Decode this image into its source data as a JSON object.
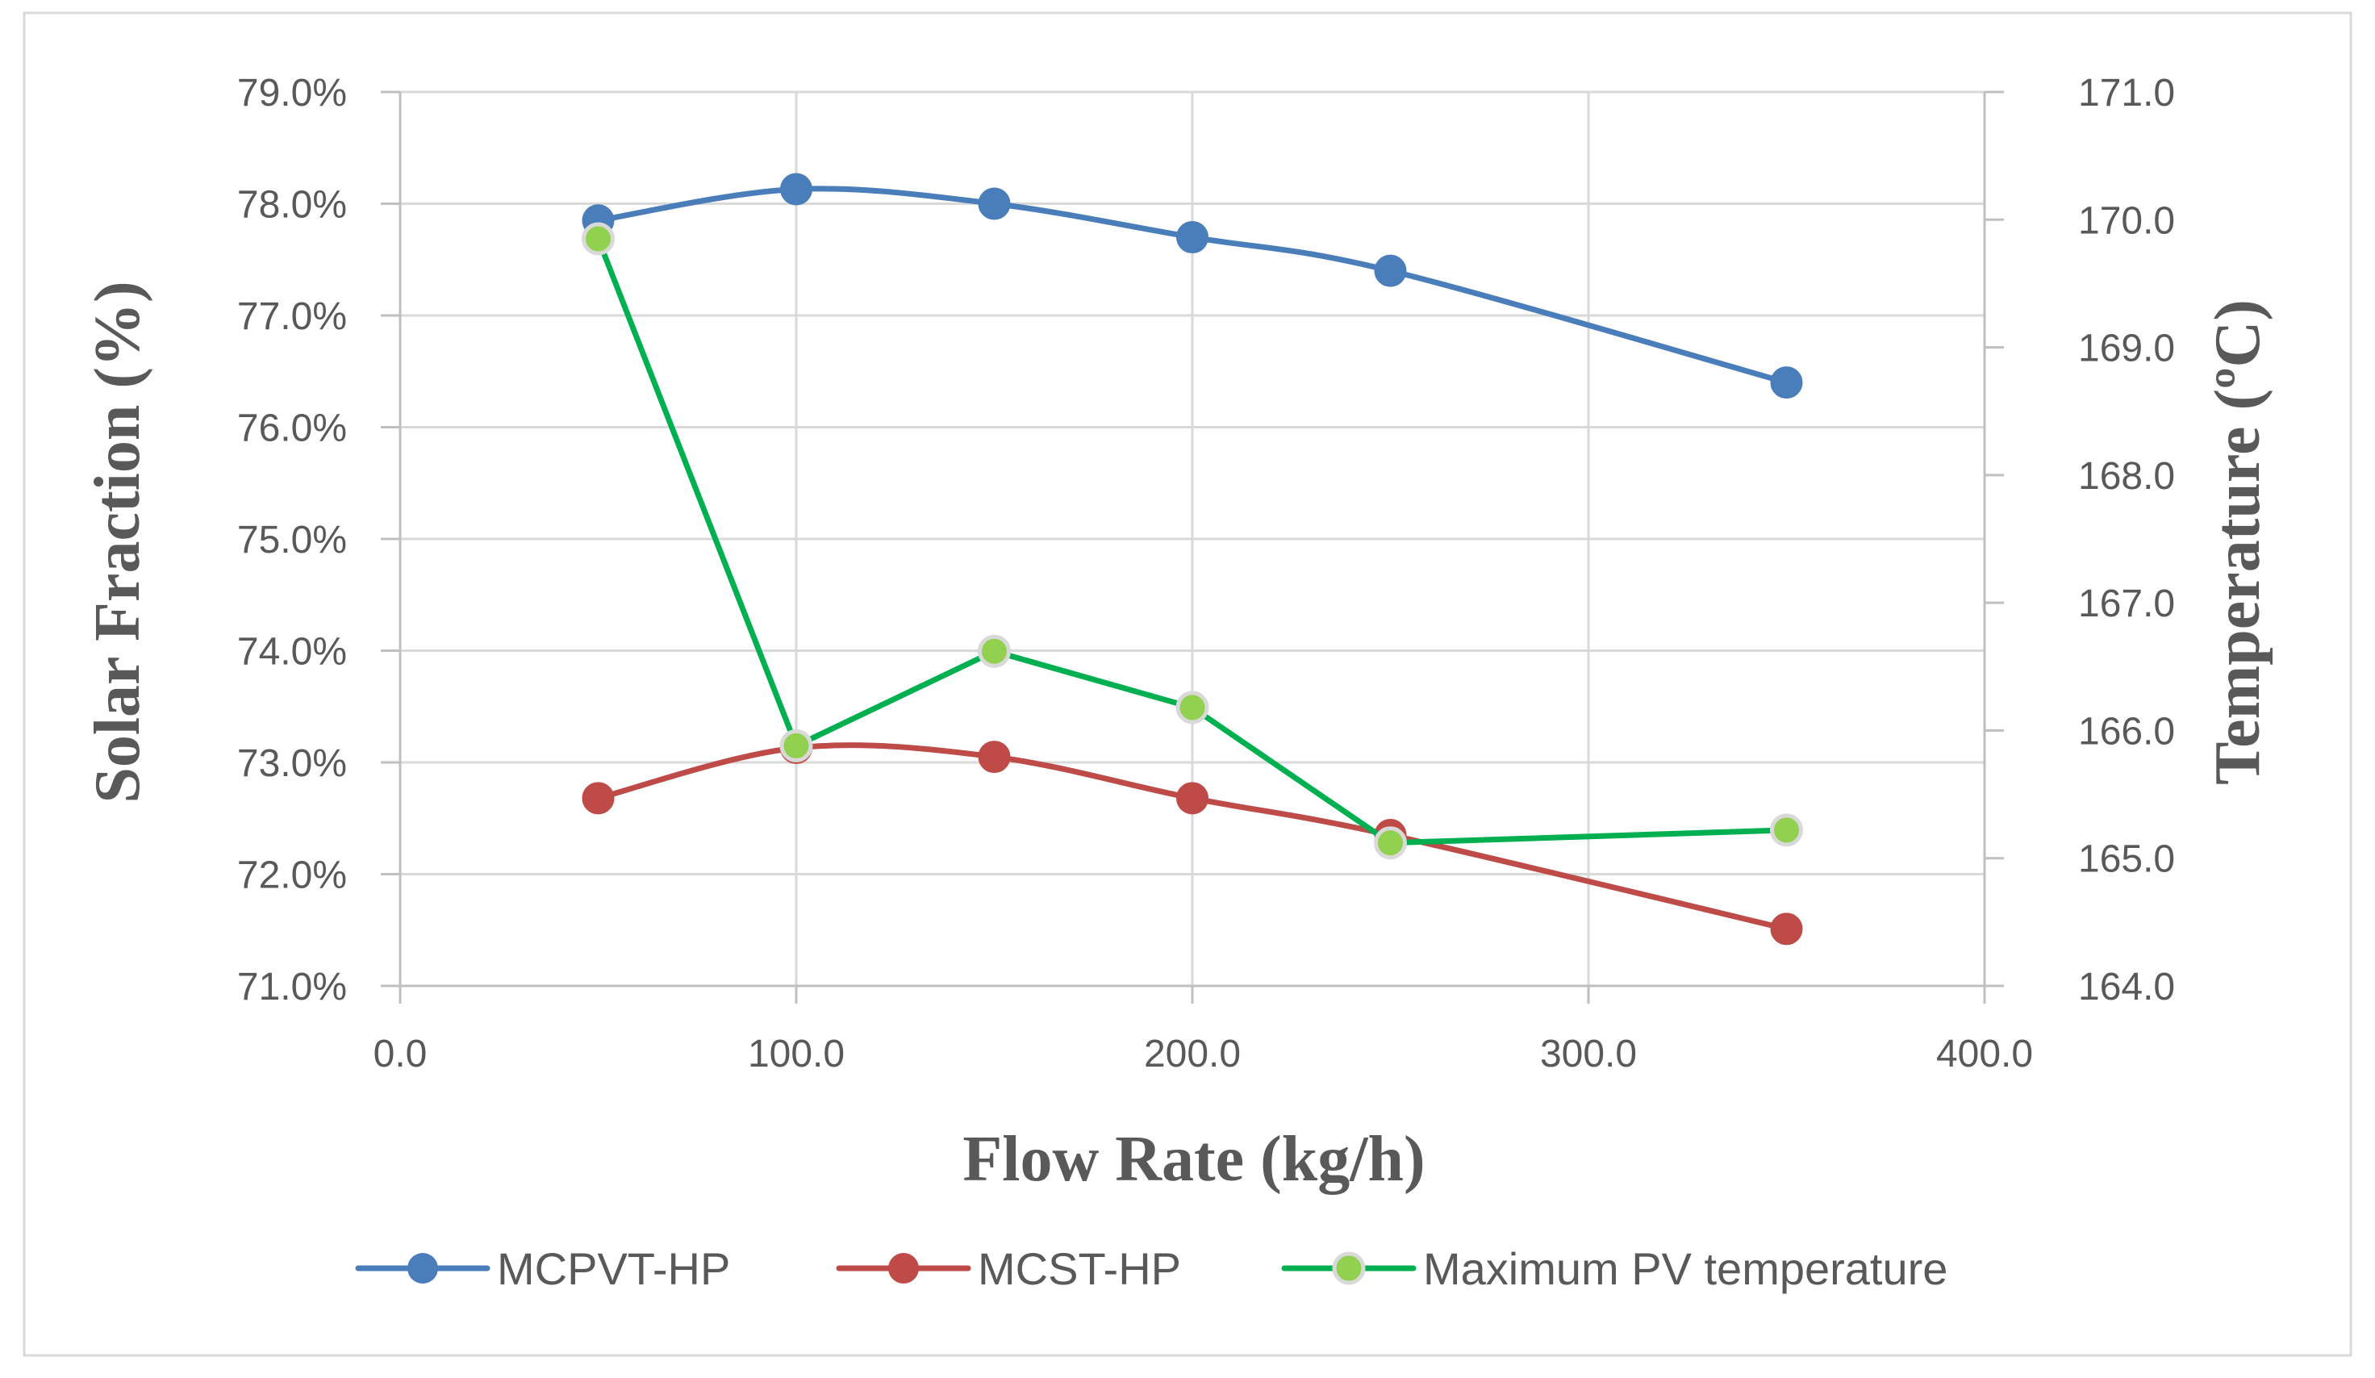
{
  "chart_data": {
    "type": "line",
    "xlabel": "Flow Rate (kg/h)",
    "ylabel": "Solar Fraction (%)",
    "y2label": "Temperature (ºC)",
    "xlim": [
      0,
      400
    ],
    "ylim": [
      0.71,
      0.79
    ],
    "y2lim": [
      164,
      171
    ],
    "x_ticks": [
      "0.0",
      "100.0",
      "200.0",
      "300.0",
      "400.0"
    ],
    "y_ticks": [
      "71.0%",
      "72.0%",
      "73.0%",
      "74.0%",
      "75.0%",
      "76.0%",
      "77.0%",
      "78.0%",
      "79.0%"
    ],
    "y2_ticks": [
      "164.0",
      "165.0",
      "166.0",
      "167.0",
      "168.0",
      "169.0",
      "170.0",
      "171.0"
    ],
    "grid": true,
    "legend_position": "bottom",
    "series": [
      {
        "name": "MCPVT-HP",
        "axis": "left",
        "color": "#4a7ebb",
        "marker_color": "#4a7ebb",
        "smooth": true,
        "x": [
          50,
          100,
          150,
          200,
          250,
          350
        ],
        "y": [
          0.7785,
          0.7813,
          0.78,
          0.777,
          0.774,
          0.764
        ]
      },
      {
        "name": "MCST-HP",
        "axis": "left",
        "color": "#be4b48",
        "marker_color": "#be4b48",
        "smooth": true,
        "x": [
          50,
          100,
          150,
          200,
          250,
          350
        ],
        "y": [
          0.7268,
          0.7313,
          0.7305,
          0.7268,
          0.7235,
          0.7151
        ]
      },
      {
        "name": "Maximum PV temperature",
        "axis": "right",
        "color": "#00b050",
        "marker_color": "#92d050",
        "smooth": false,
        "x": [
          50,
          100,
          150,
          200,
          250,
          350
        ],
        "y": [
          169.85,
          165.88,
          166.62,
          166.18,
          165.12,
          165.22
        ]
      }
    ]
  }
}
